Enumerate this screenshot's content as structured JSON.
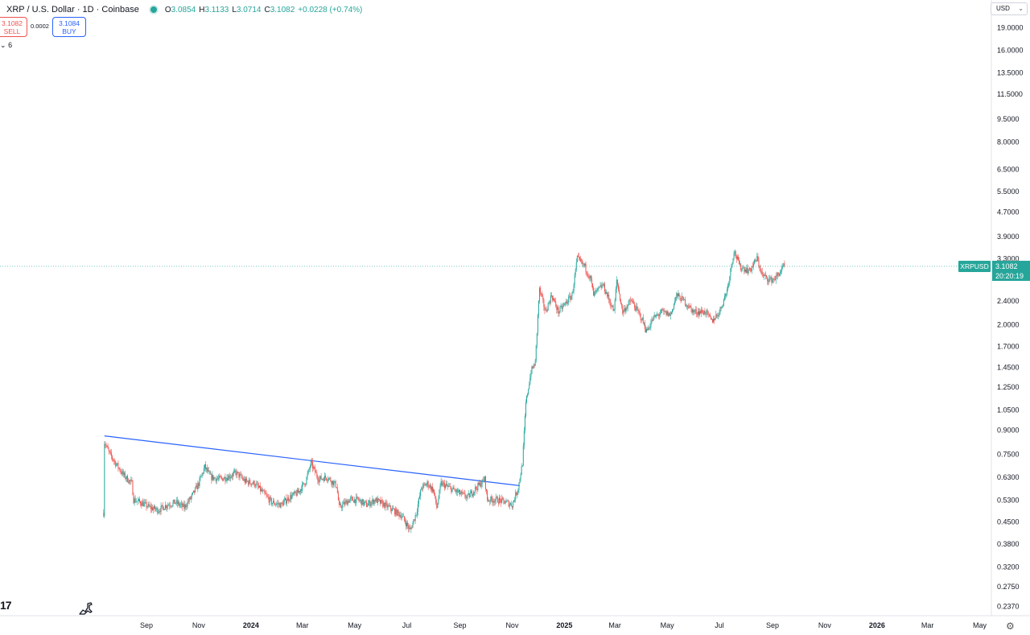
{
  "legend": {
    "symbol": "XRP / U.S. Dollar · 1D · Coinbase",
    "open_label": "O",
    "open": "3.0854",
    "high_label": "H",
    "high": "3.1133",
    "low_label": "L",
    "low": "3.0714",
    "close_label": "C",
    "close": "3.1082",
    "change": "+0.0228 (+0.74%)",
    "status_color": "#26a69a"
  },
  "trade": {
    "sell_price": "3.1082",
    "sell_label": "SELL",
    "spread": "0.0002",
    "buy_price": "3.1084",
    "buy_label": "BUY"
  },
  "indicator_row": "6",
  "currency": "USD",
  "price_tag": {
    "symbol": "XRPUSD",
    "price": "3.1082",
    "countdown": "20:20:19"
  },
  "colors": {
    "up": "#26a69a",
    "down": "#ef5350",
    "trendline": "#2962ff"
  },
  "chart_data": {
    "type": "candlestick",
    "scale": "log",
    "ylim": [
      0.22,
      22
    ],
    "y_ticks": [
      "0.2370",
      "0.2750",
      "0.3200",
      "0.3800",
      "0.4500",
      "0.5300",
      "0.6300",
      "0.7500",
      "0.9000",
      "1.0500",
      "1.2500",
      "1.4500",
      "1.7000",
      "2.0000",
      "2.4000",
      "3.3000",
      "3.9000",
      "4.7000",
      "5.5000",
      "6.5000",
      "8.0000",
      "9.5000",
      "11.5000",
      "13.5000",
      "16.0000",
      "19.0000"
    ],
    "x_ticks": [
      {
        "label": "Sep",
        "date": "2023-09-01",
        "bold": false
      },
      {
        "label": "Nov",
        "date": "2023-11-01",
        "bold": false
      },
      {
        "label": "2024",
        "date": "2024-01-01",
        "bold": true
      },
      {
        "label": "Mar",
        "date": "2024-03-01",
        "bold": false
      },
      {
        "label": "May",
        "date": "2024-05-01",
        "bold": false
      },
      {
        "label": "Jul",
        "date": "2024-07-01",
        "bold": false
      },
      {
        "label": "Sep",
        "date": "2024-09-01",
        "bold": false
      },
      {
        "label": "Nov",
        "date": "2024-11-01",
        "bold": false
      },
      {
        "label": "2025",
        "date": "2025-01-01",
        "bold": true
      },
      {
        "label": "Mar",
        "date": "2025-03-01",
        "bold": false
      },
      {
        "label": "May",
        "date": "2025-05-01",
        "bold": false
      },
      {
        "label": "Jul",
        "date": "2025-07-01",
        "bold": false
      },
      {
        "label": "Sep",
        "date": "2025-09-01",
        "bold": false
      },
      {
        "label": "Nov",
        "date": "2025-11-01",
        "bold": false
      },
      {
        "label": "2026",
        "date": "2026-01-01",
        "bold": true
      },
      {
        "label": "Mar",
        "date": "2026-03-01",
        "bold": false
      },
      {
        "label": "May",
        "date": "2026-05-01",
        "bold": false
      }
    ],
    "last_price": 3.1082,
    "price_path": [
      [
        "2023-07-13",
        0.48
      ],
      [
        "2023-07-14",
        0.82
      ],
      [
        "2023-07-20",
        0.75
      ],
      [
        "2023-07-27",
        0.7
      ],
      [
        "2023-08-05",
        0.64
      ],
      [
        "2023-08-15",
        0.6
      ],
      [
        "2023-08-17",
        0.53
      ],
      [
        "2023-08-25",
        0.52
      ],
      [
        "2023-09-05",
        0.5
      ],
      [
        "2023-09-15",
        0.49
      ],
      [
        "2023-09-25",
        0.51
      ],
      [
        "2023-10-05",
        0.52
      ],
      [
        "2023-10-15",
        0.5
      ],
      [
        "2023-10-25",
        0.55
      ],
      [
        "2023-11-01",
        0.6
      ],
      [
        "2023-11-08",
        0.68
      ],
      [
        "2023-11-15",
        0.63
      ],
      [
        "2023-11-25",
        0.62
      ],
      [
        "2023-12-05",
        0.63
      ],
      [
        "2023-12-15",
        0.65
      ],
      [
        "2023-12-25",
        0.61
      ],
      [
        "2024-01-05",
        0.6
      ],
      [
        "2024-01-15",
        0.56
      ],
      [
        "2024-01-25",
        0.52
      ],
      [
        "2024-02-05",
        0.51
      ],
      [
        "2024-02-15",
        0.54
      ],
      [
        "2024-02-25",
        0.56
      ],
      [
        "2024-03-05",
        0.61
      ],
      [
        "2024-03-11",
        0.7
      ],
      [
        "2024-03-20",
        0.62
      ],
      [
        "2024-03-30",
        0.63
      ],
      [
        "2024-04-10",
        0.59
      ],
      [
        "2024-04-13",
        0.5
      ],
      [
        "2024-04-25",
        0.53
      ],
      [
        "2024-05-05",
        0.53
      ],
      [
        "2024-05-15",
        0.51
      ],
      [
        "2024-05-25",
        0.53
      ],
      [
        "2024-06-05",
        0.51
      ],
      [
        "2024-06-15",
        0.49
      ],
      [
        "2024-06-25",
        0.47
      ],
      [
        "2024-07-05",
        0.42
      ],
      [
        "2024-07-12",
        0.48
      ],
      [
        "2024-07-18",
        0.58
      ],
      [
        "2024-07-25",
        0.6
      ],
      [
        "2024-08-01",
        0.57
      ],
      [
        "2024-08-05",
        0.5
      ],
      [
        "2024-08-10",
        0.6
      ],
      [
        "2024-08-20",
        0.58
      ],
      [
        "2024-08-30",
        0.56
      ],
      [
        "2024-09-10",
        0.54
      ],
      [
        "2024-09-20",
        0.58
      ],
      [
        "2024-09-30",
        0.62
      ],
      [
        "2024-10-03",
        0.53
      ],
      [
        "2024-10-15",
        0.53
      ],
      [
        "2024-10-25",
        0.52
      ],
      [
        "2024-11-01",
        0.51
      ],
      [
        "2024-11-08",
        0.58
      ],
      [
        "2024-11-13",
        0.7
      ],
      [
        "2024-11-17",
        1.1
      ],
      [
        "2024-11-23",
        1.4
      ],
      [
        "2024-11-28",
        1.5
      ],
      [
        "2024-12-02",
        2.4
      ],
      [
        "2024-12-03",
        2.6
      ],
      [
        "2024-12-10",
        2.2
      ],
      [
        "2024-12-17",
        2.5
      ],
      [
        "2024-12-25",
        2.2
      ],
      [
        "2025-01-05",
        2.4
      ],
      [
        "2025-01-10",
        2.5
      ],
      [
        "2025-01-16",
        3.3
      ],
      [
        "2025-01-25",
        3.1
      ],
      [
        "2025-02-01",
        2.8
      ],
      [
        "2025-02-04",
        2.5
      ],
      [
        "2025-02-15",
        2.7
      ],
      [
        "2025-02-28",
        2.2
      ],
      [
        "2025-03-03",
        2.8
      ],
      [
        "2025-03-10",
        2.2
      ],
      [
        "2025-03-20",
        2.4
      ],
      [
        "2025-04-01",
        2.1
      ],
      [
        "2025-04-07",
        1.9
      ],
      [
        "2025-04-15",
        2.1
      ],
      [
        "2025-04-25",
        2.2
      ],
      [
        "2025-05-05",
        2.15
      ],
      [
        "2025-05-12",
        2.5
      ],
      [
        "2025-05-20",
        2.4
      ],
      [
        "2025-06-01",
        2.2
      ],
      [
        "2025-06-15",
        2.2
      ],
      [
        "2025-06-22",
        2.05
      ],
      [
        "2025-07-01",
        2.2
      ],
      [
        "2025-07-10",
        2.6
      ],
      [
        "2025-07-18",
        3.5
      ],
      [
        "2025-07-25",
        3.1
      ],
      [
        "2025-08-05",
        3.0
      ],
      [
        "2025-08-14",
        3.3
      ],
      [
        "2025-08-20",
        2.9
      ],
      [
        "2025-08-30",
        2.8
      ],
      [
        "2025-09-05",
        2.85
      ],
      [
        "2025-09-14",
        3.1
      ],
      [
        "2025-09-15",
        3.1082
      ]
    ],
    "trendline": {
      "from": [
        "2023-07-14",
        0.86
      ],
      "to": [
        "2024-11-10",
        0.59
      ]
    }
  }
}
